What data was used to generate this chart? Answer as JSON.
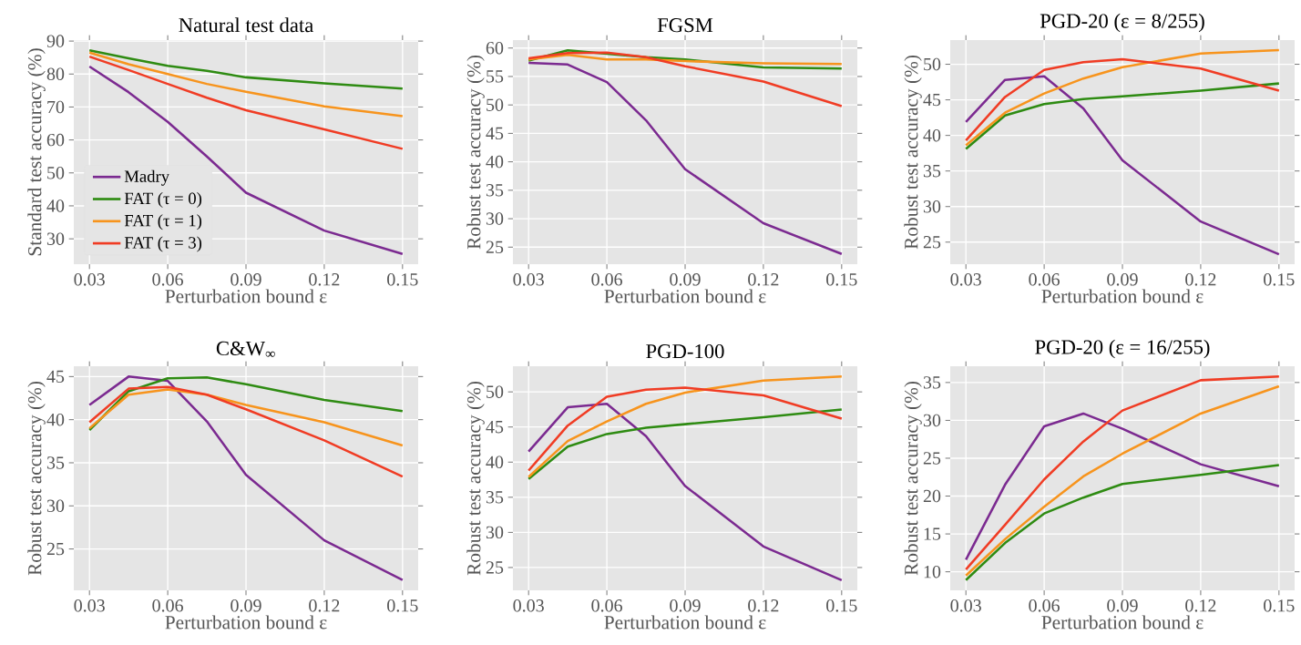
{
  "chart_data": [
    {
      "type": "line",
      "title": "Natural test data",
      "xlabel": "Perturbation bound ε",
      "ylabel": "Standard test accuracy (%)",
      "x": [
        0.03,
        0.045,
        0.06,
        0.075,
        0.09,
        0.12,
        0.15
      ],
      "xlim": [
        0.024,
        0.156
      ],
      "xticks": [
        0.03,
        0.06,
        0.09,
        0.12,
        0.15
      ],
      "ylim": [
        22.3,
        90.3
      ],
      "yticks": [
        30,
        40,
        50,
        60,
        70,
        80,
        90
      ],
      "grid": true,
      "legend": "bottom left",
      "series": [
        {
          "name": "Madry",
          "color": "#7b2a90",
          "values": [
            82.3,
            74.5,
            65.5,
            55,
            44,
            32.5,
            25.4
          ]
        },
        {
          "name": "FAT (τ = 0)",
          "color": "#2e8b12",
          "values": [
            87.2,
            84.8,
            82.5,
            81,
            79,
            77.2,
            75.6
          ]
        },
        {
          "name": "FAT (τ = 1)",
          "color": "#f7941d",
          "values": [
            86.5,
            83,
            80,
            77,
            74.6,
            70.2,
            67.2
          ]
        },
        {
          "name": "FAT (τ = 3)",
          "color": "#f03c24",
          "values": [
            85.3,
            81.2,
            77,
            72.8,
            69,
            63.2,
            57.3
          ]
        }
      ]
    },
    {
      "type": "line",
      "title": "FGSM",
      "xlabel": "Perturbation bound ε",
      "ylabel": "Robust test accuracy (%)",
      "x": [
        0.03,
        0.045,
        0.06,
        0.075,
        0.09,
        0.12,
        0.15
      ],
      "xlim": [
        0.024,
        0.156
      ],
      "xticks": [
        0.03,
        0.06,
        0.09,
        0.12,
        0.15
      ],
      "ylim": [
        22.0,
        61.4
      ],
      "yticks": [
        25,
        30,
        35,
        40,
        45,
        50,
        55,
        60
      ],
      "grid": true,
      "series": [
        {
          "color": "#7b2a90",
          "values": [
            57.4,
            57.1,
            54,
            47.3,
            38.7,
            29.2,
            23.8
          ]
        },
        {
          "color": "#2e8b12",
          "values": [
            57.8,
            59.6,
            59.0,
            58.4,
            58.0,
            56.6,
            56.4
          ]
        },
        {
          "color": "#f7941d",
          "values": [
            58.0,
            58.8,
            58.0,
            58.0,
            57.7,
            57.3,
            57.2
          ]
        },
        {
          "color": "#f03c24",
          "values": [
            58.2,
            59.1,
            59.2,
            58.4,
            56.8,
            54.1,
            49.8
          ]
        }
      ]
    },
    {
      "type": "line",
      "title": "PGD-20 (ε = 8/255)",
      "xlabel": "Perturbation bound ε",
      "ylabel": "Robust test accuracy (%)",
      "x": [
        0.03,
        0.045,
        0.06,
        0.075,
        0.09,
        0.12,
        0.15
      ],
      "xlim": [
        0.024,
        0.156
      ],
      "xticks": [
        0.03,
        0.06,
        0.09,
        0.12,
        0.15
      ],
      "ylim": [
        21.9,
        53.4
      ],
      "yticks": [
        25,
        30,
        35,
        40,
        45,
        50
      ],
      "grid": true,
      "series": [
        {
          "color": "#7b2a90",
          "values": [
            41.9,
            47.8,
            48.3,
            43.8,
            36.5,
            27.9,
            23.3
          ]
        },
        {
          "color": "#2e8b12",
          "values": [
            38.1,
            42.8,
            44.4,
            45.1,
            45.5,
            46.3,
            47.3
          ]
        },
        {
          "color": "#f7941d",
          "values": [
            38.6,
            43.2,
            45.9,
            48.0,
            49.6,
            51.5,
            52.0
          ]
        },
        {
          "color": "#f03c24",
          "values": [
            39.3,
            45.4,
            49.2,
            50.3,
            50.7,
            49.4,
            46.3
          ]
        }
      ]
    },
    {
      "type": "line",
      "title": "C&W$_{∞}$",
      "xlabel": "Perturbation bound ε",
      "ylabel": "Robust test accuracy (%)",
      "x": [
        0.03,
        0.045,
        0.06,
        0.075,
        0.09,
        0.12,
        0.15
      ],
      "xlim": [
        0.024,
        0.156
      ],
      "xticks": [
        0.03,
        0.06,
        0.09,
        0.12,
        0.15
      ],
      "ylim": [
        20.2,
        46.2
      ],
      "yticks": [
        25,
        30,
        35,
        40,
        45
      ],
      "grid": true,
      "series": [
        {
          "color": "#7b2a90",
          "values": [
            41.7,
            45.0,
            44.5,
            39.8,
            33.6,
            26.0,
            21.4
          ]
        },
        {
          "color": "#2e8b12",
          "values": [
            38.8,
            43.3,
            44.8,
            44.9,
            44.1,
            42.3,
            41.0
          ]
        },
        {
          "color": "#f7941d",
          "values": [
            39.0,
            42.9,
            43.5,
            42.9,
            41.7,
            39.7,
            37.0
          ]
        },
        {
          "color": "#f03c24",
          "values": [
            39.7,
            43.6,
            43.8,
            42.9,
            41.2,
            37.6,
            33.4
          ]
        }
      ]
    },
    {
      "type": "line",
      "title": "PGD-100",
      "xlabel": "Perturbation bound ε",
      "ylabel": "Robust test accuracy (%)",
      "x": [
        0.03,
        0.045,
        0.06,
        0.075,
        0.09,
        0.12,
        0.15
      ],
      "xlim": [
        0.024,
        0.156
      ],
      "xticks": [
        0.03,
        0.06,
        0.09,
        0.12,
        0.15
      ],
      "ylim": [
        21.75,
        53.65
      ],
      "yticks": [
        25,
        30,
        35,
        40,
        45,
        50
      ],
      "grid": true,
      "series": [
        {
          "color": "#7b2a90",
          "values": [
            41.5,
            47.8,
            48.3,
            43.7,
            36.6,
            28.0,
            23.2
          ]
        },
        {
          "color": "#2e8b12",
          "values": [
            37.6,
            42.2,
            44.0,
            44.9,
            45.4,
            46.4,
            47.5
          ]
        },
        {
          "color": "#f7941d",
          "values": [
            37.9,
            43.0,
            45.8,
            48.3,
            49.9,
            51.6,
            52.2
          ]
        },
        {
          "color": "#f03c24",
          "values": [
            38.8,
            45.2,
            49.3,
            50.3,
            50.6,
            49.5,
            46.2
          ]
        }
      ]
    },
    {
      "type": "line",
      "title": "PGD-20 (ε = 16/255)",
      "xlabel": "Perturbation bound ε",
      "ylabel": "Robust test accuracy (%)",
      "x": [
        0.03,
        0.045,
        0.06,
        0.075,
        0.09,
        0.12,
        0.15
      ],
      "xlim": [
        0.024,
        0.156
      ],
      "xticks": [
        0.03,
        0.06,
        0.09,
        0.12,
        0.15
      ],
      "ylim": [
        7.55,
        37.15
      ],
      "yticks": [
        10,
        15,
        20,
        25,
        30,
        35
      ],
      "grid": true,
      "series": [
        {
          "color": "#7b2a90",
          "values": [
            11.6,
            21.5,
            29.2,
            30.9,
            28.9,
            24.2,
            21.3
          ]
        },
        {
          "color": "#2e8b12",
          "values": [
            8.9,
            13.8,
            17.7,
            19.8,
            21.6,
            22.8,
            24.1
          ]
        },
        {
          "color": "#f7941d",
          "values": [
            9.5,
            14.3,
            18.6,
            22.6,
            25.6,
            30.9,
            34.5
          ]
        },
        {
          "color": "#f03c24",
          "values": [
            10.3,
            16.2,
            22.2,
            27.2,
            31.3,
            35.3,
            35.8
          ]
        }
      ]
    }
  ]
}
